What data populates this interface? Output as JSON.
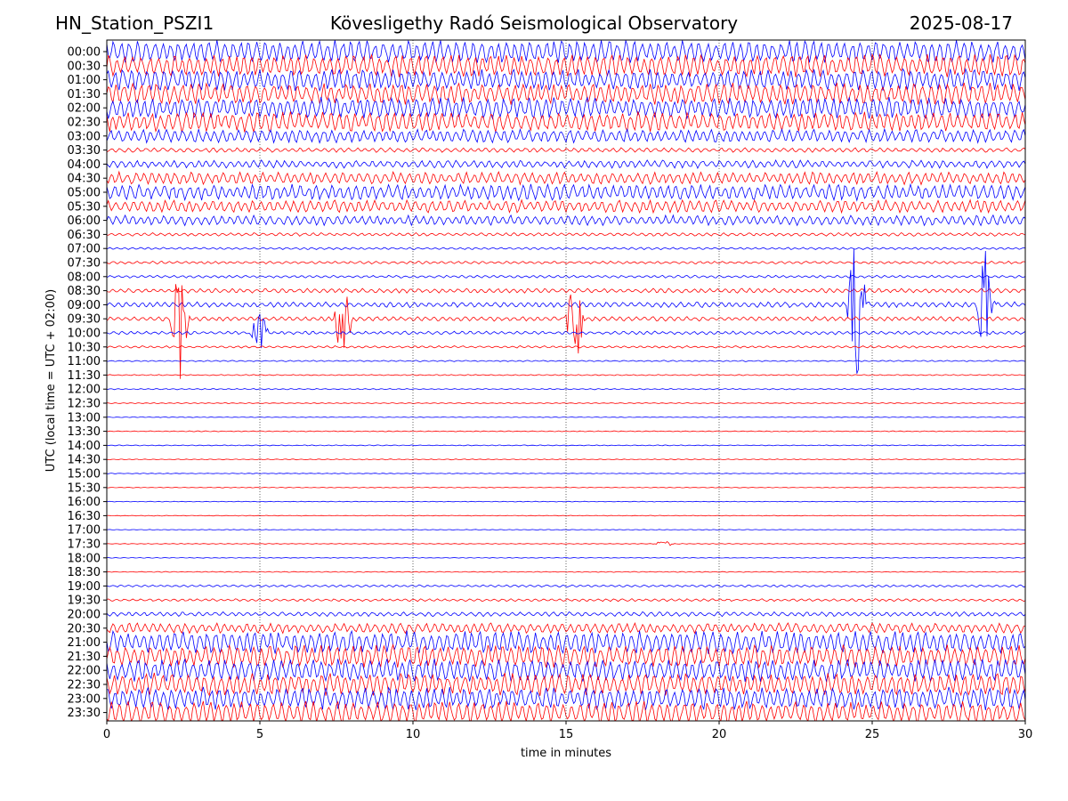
{
  "header": {
    "station": "HN_Station_PSZI1",
    "observatory": "Kövesligethy Radó Seismological Observatory",
    "date": "2025-08-17"
  },
  "chart_data": {
    "type": "line",
    "subtype": "helicorder",
    "xlabel": "time in minutes",
    "ylabel": "UTC (local time = UTC + 02:00)",
    "xlim": [
      0,
      30
    ],
    "xticks": [
      0,
      5,
      10,
      15,
      20,
      25,
      30
    ],
    "vertical_gridlines_at": [
      5,
      10,
      15,
      20,
      25
    ],
    "rows": [
      "00:00",
      "00:30",
      "01:00",
      "01:30",
      "02:00",
      "02:30",
      "03:00",
      "03:30",
      "04:00",
      "04:30",
      "05:00",
      "05:30",
      "06:00",
      "06:30",
      "07:00",
      "07:30",
      "08:00",
      "08:30",
      "09:00",
      "09:30",
      "10:00",
      "10:30",
      "11:00",
      "11:30",
      "12:00",
      "12:30",
      "13:00",
      "13:30",
      "14:00",
      "14:30",
      "15:00",
      "15:30",
      "16:00",
      "16:30",
      "17:00",
      "17:30",
      "18:00",
      "18:30",
      "19:00",
      "19:30",
      "20:00",
      "20:30",
      "21:00",
      "21:30",
      "22:00",
      "22:30",
      "23:00",
      "23:30"
    ],
    "trace_colors": [
      "#0000ff",
      "#ff0000"
    ],
    "row_noise_amplitude": [
      1.0,
      1.0,
      0.95,
      0.95,
      0.95,
      0.9,
      0.6,
      0.2,
      0.35,
      0.55,
      0.7,
      0.55,
      0.45,
      0.15,
      0.1,
      0.12,
      0.12,
      0.2,
      0.25,
      0.2,
      0.15,
      0.1,
      0.06,
      0.05,
      0.05,
      0.04,
      0.03,
      0.04,
      0.04,
      0.04,
      0.03,
      0.03,
      0.03,
      0.03,
      0.03,
      0.03,
      0.03,
      0.04,
      0.1,
      0.12,
      0.2,
      0.45,
      1.0,
      1.0,
      1.0,
      1.0,
      1.0,
      1.0
    ],
    "events": [
      {
        "row": "09:30",
        "minute": 2.4,
        "amplitude": 6.5
      },
      {
        "row": "09:30",
        "minute": 7.7,
        "amplitude": 6.0
      },
      {
        "row": "09:30",
        "minute": 15.3,
        "amplitude": 5.0
      },
      {
        "row": "10:00",
        "minute": 5.0,
        "amplitude": 3.0
      },
      {
        "row": "09:00",
        "minute": 24.5,
        "amplitude": 8.0
      },
      {
        "row": "09:00",
        "minute": 28.7,
        "amplitude": 6.5
      },
      {
        "row": "17:30",
        "minute": 18.2,
        "amplitude": 0.4
      }
    ]
  }
}
